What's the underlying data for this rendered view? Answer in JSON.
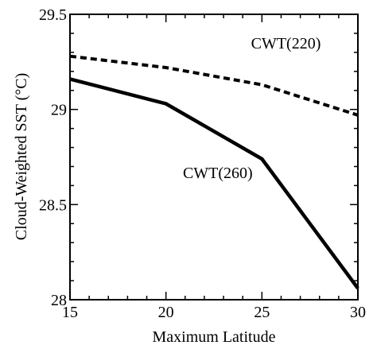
{
  "chart_data": {
    "type": "line",
    "title": "",
    "xlabel": "Maximum Latitude",
    "ylabel": "Cloud-Weighted SST (°C)",
    "xlim": [
      15,
      30
    ],
    "ylim": [
      28,
      29.5
    ],
    "x_ticks": [
      15,
      20,
      25,
      30
    ],
    "x_tick_labels": [
      "15",
      "20",
      "25",
      "30"
    ],
    "y_ticks": [
      28,
      28.5,
      29,
      29.5
    ],
    "y_tick_labels": [
      "28",
      "28.5",
      "29",
      "29.5"
    ],
    "grid": false,
    "series": [
      {
        "name": "CWT(220)",
        "style": "dashed",
        "color": "#000000",
        "x": [
          15,
          20,
          25,
          30
        ],
        "y": [
          29.28,
          29.22,
          29.13,
          28.97
        ]
      },
      {
        "name": "CWT(260)",
        "style": "solid",
        "color": "#000000",
        "x": [
          15,
          20,
          25,
          30
        ],
        "y": [
          29.16,
          29.03,
          28.74,
          28.06
        ]
      }
    ]
  }
}
